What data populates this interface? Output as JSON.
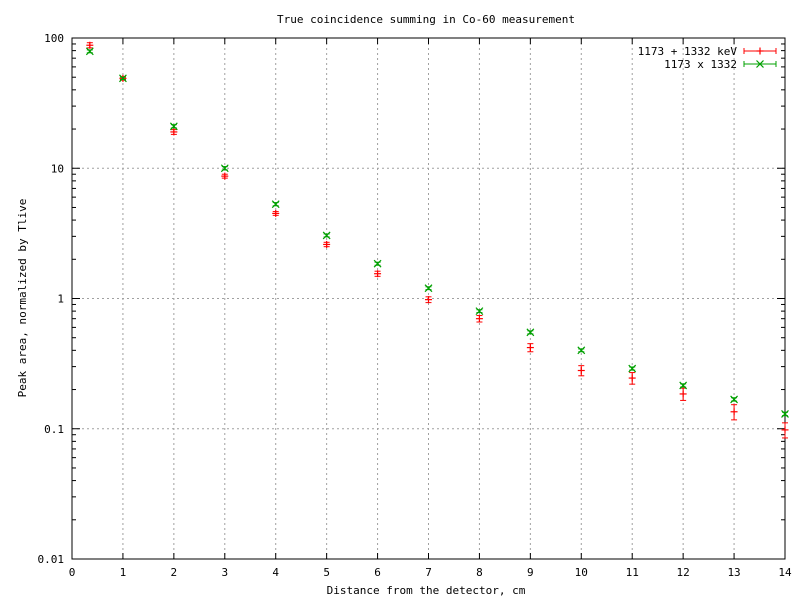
{
  "chart_data": {
    "type": "scatter",
    "title": "True coincidence summing in Co-60 measurement",
    "xlabel": "Distance from the detector, cm",
    "ylabel": "Peak area, normalized by Tlive",
    "xlim": [
      0,
      14
    ],
    "ylim": [
      0.01,
      100
    ],
    "yscale": "log",
    "grid": true,
    "legend_position": "top-right",
    "x_ticks": [
      0,
      1,
      2,
      3,
      4,
      5,
      6,
      7,
      8,
      9,
      10,
      11,
      12,
      13,
      14
    ],
    "x_tick_labels": [
      "0",
      "1",
      "2",
      "3",
      "4",
      "5",
      "6",
      "7",
      "8",
      "9",
      "10",
      "11",
      "12",
      "13",
      "14"
    ],
    "y_ticks": [
      0.01,
      0.1,
      1,
      10,
      100
    ],
    "y_tick_labels": [
      "0.01",
      "0.1",
      "1",
      "10",
      "100"
    ],
    "series": [
      {
        "name": "1173 + 1332 keV",
        "color": "#ff0000",
        "marker": "plus",
        "x": [
          0.35,
          1,
          2,
          3,
          4,
          5,
          6,
          7,
          8,
          9,
          10,
          11,
          12,
          13,
          14
        ],
        "y": [
          88,
          49,
          19,
          8.7,
          4.5,
          2.6,
          1.55,
          0.98,
          0.7,
          0.42,
          0.28,
          0.245,
          0.185,
          0.135,
          0.098
        ],
        "err": [
          4,
          1.5,
          0.8,
          0.3,
          0.15,
          0.1,
          0.07,
          0.05,
          0.04,
          0.03,
          0.025,
          0.025,
          0.02,
          0.018,
          0.013
        ]
      },
      {
        "name": "1173 x 1332",
        "color": "#00a000",
        "marker": "x",
        "x": [
          0.35,
          1,
          2,
          3,
          4,
          5,
          6,
          7,
          8,
          9,
          10,
          11,
          12,
          13,
          14
        ],
        "y": [
          79,
          49,
          21,
          10,
          5.3,
          3.05,
          1.85,
          1.2,
          0.8,
          0.55,
          0.4,
          0.29,
          0.215,
          0.168,
          0.13
        ],
        "err": [
          2,
          1,
          0.6,
          0.3,
          0.15,
          0.08,
          0.05,
          0.03,
          0.02,
          0.015,
          0.01,
          0.008,
          0.006,
          0.005,
          0.004
        ]
      }
    ]
  }
}
